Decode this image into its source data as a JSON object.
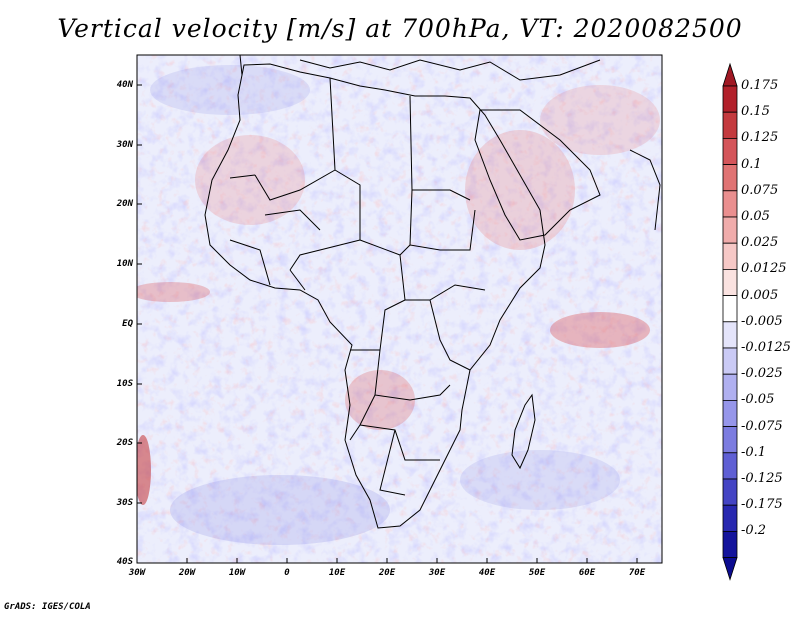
{
  "title": "Vertical velocity [m/s] at 700hPa, VT: 2020082500",
  "credit": "GrADS: IGES/COLA",
  "lat_labels": [
    "40N",
    "30N",
    "20N",
    "10N",
    "EQ",
    "10S",
    "20S",
    "30S",
    "40S"
  ],
  "lon_labels": [
    "30W",
    "20W",
    "10W",
    "0",
    "10E",
    "20E",
    "30E",
    "40E",
    "50E",
    "60E",
    "70E"
  ],
  "colorbar": {
    "labels": [
      "0.175",
      "0.15",
      "0.125",
      "0.1",
      "0.075",
      "0.05",
      "0.025",
      "0.0125",
      "0.005",
      "-0.005",
      "-0.0125",
      "-0.025",
      "-0.05",
      "-0.075",
      "-0.1",
      "-0.125",
      "-0.175",
      "-0.2"
    ],
    "colors": [
      "#b2202a",
      "#c43a3e",
      "#d4555a",
      "#e07373",
      "#ea8f8f",
      "#f0acab",
      "#f6c8c6",
      "#fae2e0",
      "#ffffff",
      "#e4e4fa",
      "#cacaf5",
      "#b0b0f0",
      "#9696ea",
      "#7c7ce0",
      "#5f5fd4",
      "#4444c4",
      "#2828b0",
      "#14149c"
    ],
    "top_color": "#a01823",
    "bottom_color": "#0c0c90"
  }
}
